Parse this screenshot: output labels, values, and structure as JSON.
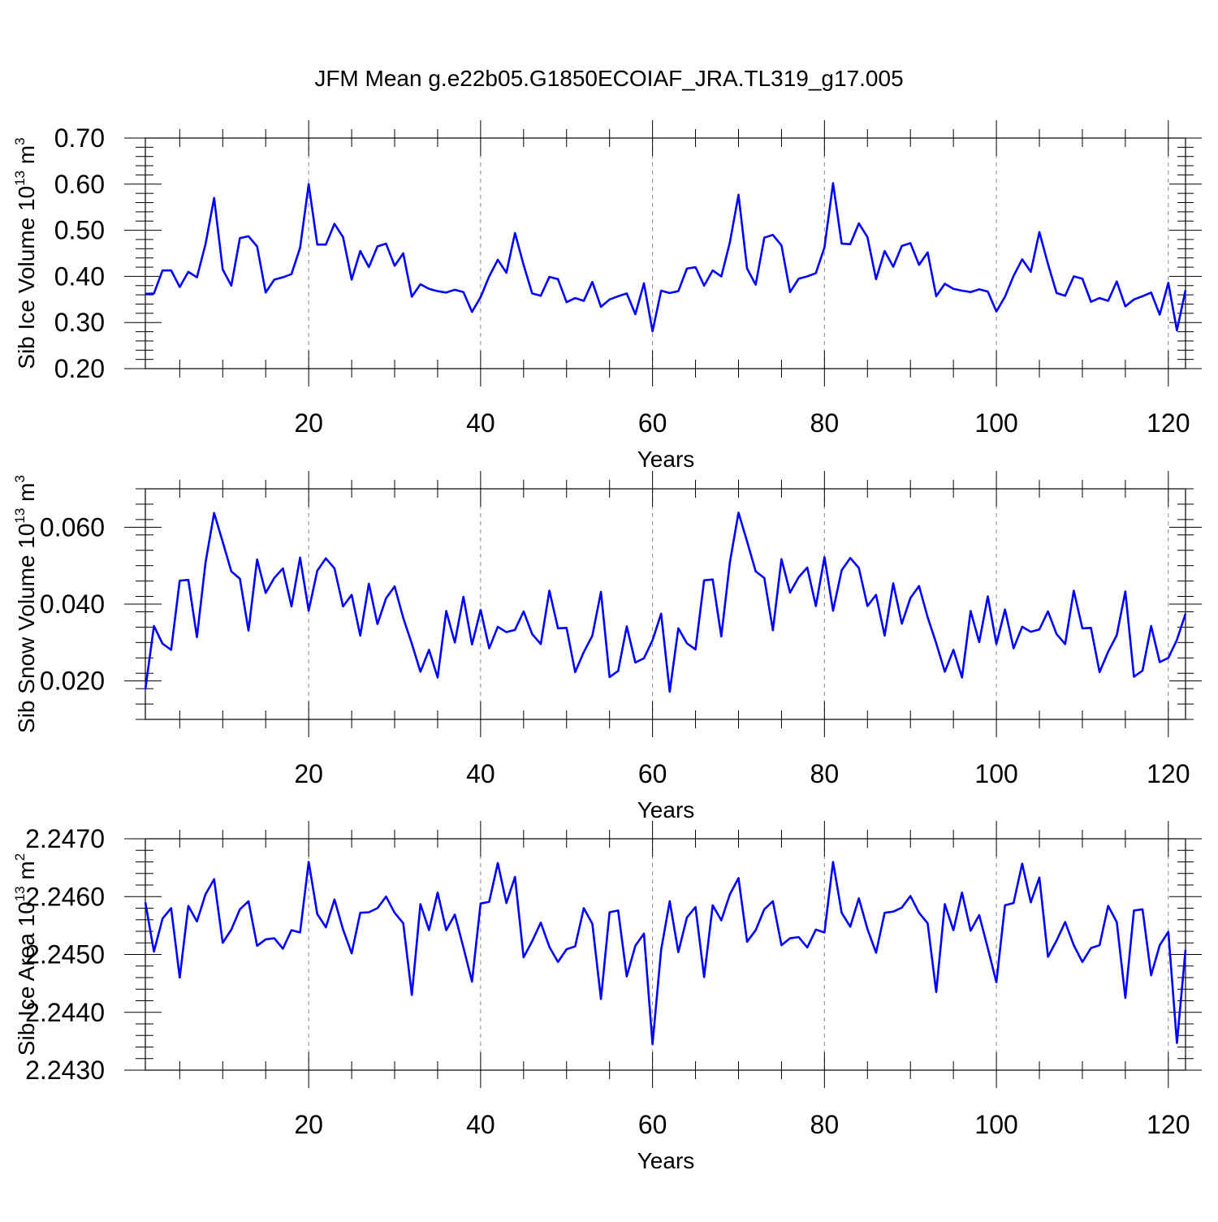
{
  "title": "JFM Mean g.e22b05.G1850ECOIAF_JRA.TL319_g17.005",
  "line_color": "#0000ff",
  "grid_color": "#888888",
  "chart_data": [
    {
      "type": "line",
      "ylabel": {
        "prefix": "Sib Ice Volume 10",
        "sup1": "13",
        "mid": " m",
        "sup2": "3"
      },
      "xlabel": "Years",
      "xlim": [
        1,
        122
      ],
      "ylim": [
        0.2,
        0.7
      ],
      "xticks": [
        20,
        40,
        60,
        80,
        100,
        120
      ],
      "xtick_labels": [
        "20",
        "40",
        "60",
        "80",
        "100",
        "120"
      ],
      "yticks": [
        0.2,
        0.3,
        0.4,
        0.5,
        0.6,
        0.7
      ],
      "ytick_labels": [
        "0.20",
        "0.30",
        "0.40",
        "0.50",
        "0.60",
        "0.70"
      ],
      "x": [
        1,
        2,
        3,
        4,
        5,
        6,
        7,
        8,
        9,
        10,
        11,
        12,
        13,
        14,
        15,
        16,
        17,
        18,
        19,
        20,
        21,
        22,
        23,
        24,
        25,
        26,
        27,
        28,
        29,
        30,
        31,
        32,
        33,
        34,
        35,
        36,
        37,
        38,
        39,
        40,
        41,
        42,
        43,
        44,
        45,
        46,
        47,
        48,
        49,
        50,
        51,
        52,
        53,
        54,
        55,
        56,
        57,
        58,
        59,
        60,
        61,
        62,
        63,
        64,
        65,
        66,
        67,
        68,
        69,
        70,
        71,
        72,
        73,
        74,
        75,
        76,
        77,
        78,
        79,
        80,
        81,
        82,
        83,
        84,
        85,
        86,
        87,
        88,
        89,
        90,
        91,
        92,
        93,
        94,
        95,
        96,
        97,
        98,
        99,
        100,
        101,
        102,
        103,
        104,
        105,
        106,
        107,
        108,
        109,
        110,
        111,
        112,
        113,
        114,
        115,
        116,
        117,
        118,
        119,
        120,
        121,
        122
      ],
      "values": [
        0.362,
        0.363,
        0.413,
        0.413,
        0.377,
        0.41,
        0.398,
        0.47,
        0.57,
        0.415,
        0.38,
        0.483,
        0.487,
        0.465,
        0.365,
        0.393,
        0.398,
        0.405,
        0.462,
        0.6,
        0.469,
        0.469,
        0.514,
        0.485,
        0.393,
        0.455,
        0.42,
        0.465,
        0.471,
        0.423,
        0.45,
        0.356,
        0.383,
        0.373,
        0.368,
        0.365,
        0.371,
        0.366,
        0.323,
        0.355,
        0.4,
        0.436,
        0.408,
        0.494,
        0.425,
        0.363,
        0.358,
        0.399,
        0.394,
        0.344,
        0.353,
        0.347,
        0.388,
        0.334,
        0.35,
        0.357,
        0.363,
        0.318,
        0.385,
        0.281,
        0.369,
        0.364,
        0.368,
        0.417,
        0.42,
        0.38,
        0.413,
        0.4,
        0.474,
        0.577,
        0.417,
        0.382,
        0.484,
        0.49,
        0.467,
        0.366,
        0.395,
        0.4,
        0.407,
        0.463,
        0.602,
        0.471,
        0.47,
        0.515,
        0.485,
        0.394,
        0.455,
        0.421,
        0.466,
        0.472,
        0.425,
        0.452,
        0.357,
        0.384,
        0.373,
        0.369,
        0.366,
        0.372,
        0.367,
        0.324,
        0.356,
        0.401,
        0.437,
        0.41,
        0.496,
        0.427,
        0.364,
        0.358,
        0.4,
        0.395,
        0.345,
        0.353,
        0.347,
        0.389,
        0.335,
        0.35,
        0.357,
        0.365,
        0.317,
        0.386,
        0.283,
        0.37
      ]
    },
    {
      "type": "line",
      "ylabel": {
        "prefix": "Sib Snow Volume 10",
        "sup1": "13",
        "mid": " m",
        "sup2": "3"
      },
      "xlabel": "Years",
      "xlim": [
        1,
        122
      ],
      "ylim": [
        0.01,
        0.07
      ],
      "xticks": [
        20,
        40,
        60,
        80,
        100,
        120
      ],
      "xtick_labels": [
        "20",
        "40",
        "60",
        "80",
        "100",
        "120"
      ],
      "yticks": [
        0.02,
        0.04,
        0.06
      ],
      "ytick_labels": [
        "0.020",
        "0.040",
        "0.060"
      ],
      "x": [
        1,
        2,
        3,
        4,
        5,
        6,
        7,
        8,
        9,
        10,
        11,
        12,
        13,
        14,
        15,
        16,
        17,
        18,
        19,
        20,
        21,
        22,
        23,
        24,
        25,
        26,
        27,
        28,
        29,
        30,
        31,
        32,
        33,
        34,
        35,
        36,
        37,
        38,
        39,
        40,
        41,
        42,
        43,
        44,
        45,
        46,
        47,
        48,
        49,
        50,
        51,
        52,
        53,
        54,
        55,
        56,
        57,
        58,
        59,
        60,
        61,
        62,
        63,
        64,
        65,
        66,
        67,
        68,
        69,
        70,
        71,
        72,
        73,
        74,
        75,
        76,
        77,
        78,
        79,
        80,
        81,
        82,
        83,
        84,
        85,
        86,
        87,
        88,
        89,
        90,
        91,
        92,
        93,
        94,
        95,
        96,
        97,
        98,
        99,
        100,
        101,
        102,
        103,
        104,
        105,
        106,
        107,
        108,
        109,
        110,
        111,
        112,
        113,
        114,
        115,
        116,
        117,
        118,
        119,
        120,
        121,
        122
      ],
      "values": [
        0.0178,
        0.0343,
        0.0297,
        0.0281,
        0.0461,
        0.0463,
        0.0314,
        0.0508,
        0.0637,
        0.0562,
        0.0485,
        0.0466,
        0.0331,
        0.0516,
        0.0429,
        0.0468,
        0.0493,
        0.0394,
        0.0521,
        0.0383,
        0.0487,
        0.0519,
        0.0493,
        0.0394,
        0.0424,
        0.0318,
        0.0453,
        0.0348,
        0.0415,
        0.0446,
        0.0364,
        0.0297,
        0.0224,
        0.0281,
        0.0209,
        0.0382,
        0.03,
        0.0419,
        0.0295,
        0.0385,
        0.0285,
        0.0341,
        0.0327,
        0.0333,
        0.0381,
        0.0322,
        0.0296,
        0.0435,
        0.0337,
        0.0338,
        0.0223,
        0.0275,
        0.0318,
        0.0432,
        0.021,
        0.0226,
        0.0342,
        0.0248,
        0.0259,
        0.0306,
        0.0375,
        0.0172,
        0.0337,
        0.0298,
        0.0282,
        0.0462,
        0.0464,
        0.0316,
        0.0509,
        0.0638,
        0.0563,
        0.0485,
        0.0468,
        0.0332,
        0.0517,
        0.043,
        0.047,
        0.0495,
        0.0395,
        0.0522,
        0.0383,
        0.0488,
        0.052,
        0.0494,
        0.0395,
        0.0424,
        0.0318,
        0.0454,
        0.0349,
        0.0416,
        0.0447,
        0.0366,
        0.0298,
        0.0224,
        0.0281,
        0.0209,
        0.0382,
        0.0301,
        0.042,
        0.0296,
        0.0386,
        0.0285,
        0.0341,
        0.0328,
        0.0334,
        0.0381,
        0.0322,
        0.0296,
        0.0435,
        0.0337,
        0.0338,
        0.0223,
        0.0276,
        0.0319,
        0.0433,
        0.0211,
        0.0227,
        0.0343,
        0.0249,
        0.026,
        0.0307,
        0.0375
      ]
    },
    {
      "type": "line",
      "ylabel": {
        "prefix": "Sib Ice Area 10",
        "sup1": "13",
        "mid": " m",
        "sup2": "2"
      },
      "xlabel": "Years",
      "xlim": [
        1,
        122
      ],
      "ylim": [
        2.243,
        2.247
      ],
      "xticks": [
        20,
        40,
        60,
        80,
        100,
        120
      ],
      "xtick_labels": [
        "20",
        "40",
        "60",
        "80",
        "100",
        "120"
      ],
      "yticks": [
        2.243,
        2.244,
        2.245,
        2.246,
        2.247
      ],
      "ytick_labels": [
        "2.2430",
        "2.2440",
        "2.2450",
        "2.2460",
        "2.2470"
      ],
      "x": [
        1,
        2,
        3,
        4,
        5,
        6,
        7,
        8,
        9,
        10,
        11,
        12,
        13,
        14,
        15,
        16,
        17,
        18,
        19,
        20,
        21,
        22,
        23,
        24,
        25,
        26,
        27,
        28,
        29,
        30,
        31,
        32,
        33,
        34,
        35,
        36,
        37,
        38,
        39,
        40,
        41,
        42,
        43,
        44,
        45,
        46,
        47,
        48,
        49,
        50,
        51,
        52,
        53,
        54,
        55,
        56,
        57,
        58,
        59,
        60,
        61,
        62,
        63,
        64,
        65,
        66,
        67,
        68,
        69,
        70,
        71,
        72,
        73,
        74,
        75,
        76,
        77,
        78,
        79,
        80,
        81,
        82,
        83,
        84,
        85,
        86,
        87,
        88,
        89,
        90,
        91,
        92,
        93,
        94,
        95,
        96,
        97,
        98,
        99,
        100,
        101,
        102,
        103,
        104,
        105,
        106,
        107,
        108,
        109,
        110,
        111,
        112,
        113,
        114,
        115,
        116,
        117,
        118,
        119,
        120,
        121,
        122
      ],
      "values": [
        2.2459,
        2.24505,
        2.24562,
        2.2458,
        2.2446,
        2.24584,
        2.24557,
        2.24604,
        2.2463,
        2.2452,
        2.24543,
        2.24578,
        2.24592,
        2.24515,
        2.24526,
        2.24528,
        2.2451,
        2.24542,
        2.24538,
        2.2466,
        2.2457,
        2.24547,
        2.24595,
        2.24543,
        2.24502,
        2.24572,
        2.24573,
        2.2458,
        2.246,
        2.24572,
        2.24554,
        2.2443,
        2.24587,
        2.24542,
        2.24607,
        2.24542,
        2.24569,
        2.24512,
        2.24453,
        2.24588,
        2.24591,
        2.24658,
        2.24589,
        2.24634,
        2.24495,
        2.24523,
        2.24555,
        2.24513,
        2.24487,
        2.24509,
        2.24514,
        2.2458,
        2.24553,
        2.24423,
        2.24573,
        2.24576,
        2.24462,
        2.24515,
        2.24536,
        2.24345,
        2.24508,
        2.24592,
        2.24504,
        2.24564,
        2.24582,
        2.24461,
        2.24585,
        2.24559,
        2.24604,
        2.24632,
        2.24522,
        2.24542,
        2.24578,
        2.24592,
        2.24516,
        2.24528,
        2.2453,
        2.24512,
        2.24543,
        2.24538,
        2.2466,
        2.24572,
        2.24548,
        2.24597,
        2.24544,
        2.24503,
        2.24572,
        2.24574,
        2.24581,
        2.24601,
        2.24572,
        2.24554,
        2.24435,
        2.24587,
        2.24542,
        2.24607,
        2.24541,
        2.24568,
        2.24511,
        2.24452,
        2.24585,
        2.24589,
        2.24657,
        2.2459,
        2.24633,
        2.24496,
        2.24524,
        2.24556,
        2.24516,
        2.24487,
        2.24511,
        2.24516,
        2.24584,
        2.24556,
        2.24425,
        2.24576,
        2.24578,
        2.24464,
        2.24516,
        2.24539,
        2.24347,
        2.24508
      ]
    }
  ]
}
